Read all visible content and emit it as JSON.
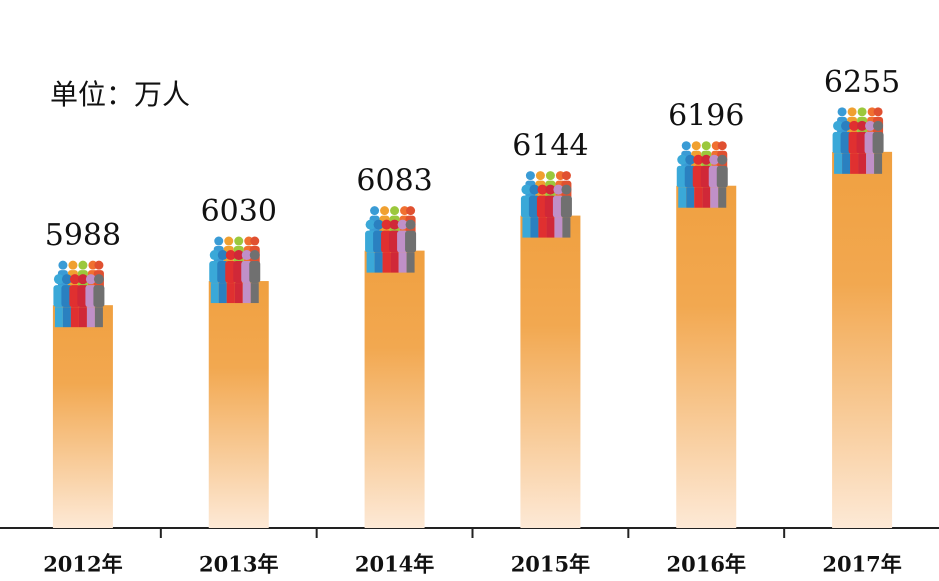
{
  "chart_data": {
    "type": "bar",
    "unit_label": "单位：万人",
    "categories": [
      "2012年",
      "2013年",
      "2014年",
      "2015年",
      "2016年",
      "2017年"
    ],
    "values": [
      5988,
      6030,
      6083,
      6144,
      6196,
      6255
    ],
    "color": "#f0a040",
    "ylim": [
      5600,
      6300
    ]
  }
}
